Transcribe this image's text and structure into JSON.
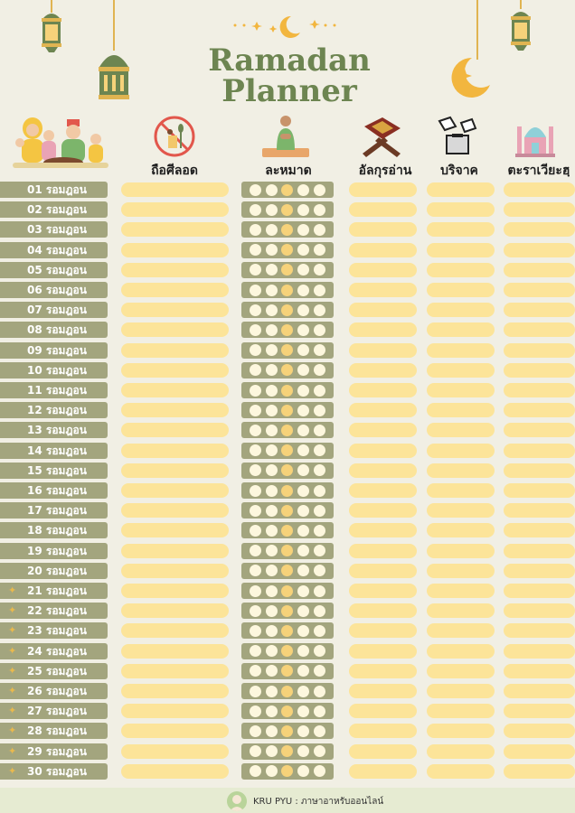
{
  "title": {
    "line1": "Ramadan",
    "line2": "Planner"
  },
  "columns": [
    {
      "key": "fasting",
      "label": "ถือศีลอด",
      "icon": "no-eating-icon"
    },
    {
      "key": "prayer",
      "label": "ละหมาด",
      "icon": "praying-man-icon"
    },
    {
      "key": "quran",
      "label": "อัลกุรอ่าน",
      "icon": "quran-stand-icon"
    },
    {
      "key": "charity",
      "label": "บริจาค",
      "icon": "donation-icon"
    },
    {
      "key": "tarawih",
      "label": "ตะราเวียะฮฺ",
      "icon": "mosque-icon"
    }
  ],
  "days": [
    "01 รอมฎอน",
    "02 รอมฎอน",
    "03 รอมฎอน",
    "04 รอมฎอน",
    "05 รอมฎอน",
    "06 รอมฎอน",
    "07 รอมฎอน",
    "08 รอมฎอน",
    "09 รอมฎอน",
    "10 รอมฎอน",
    "11 รอมฎอน",
    "12 รอมฎอน",
    "13 รอมฎอน",
    "14 รอมฎอน",
    "15 รอมฎอน",
    "16 รอมฎอน",
    "17 รอมฎอน",
    "18 รอมฎอน",
    "19 รอมฎอน",
    "20 รอมฎอน",
    "21 รอมฎอน",
    "22 รอมฎอน",
    "23 รอมฎอน",
    "24 รอมฎอน",
    "25 รอมฎอน",
    "26 รอมฎอน",
    "27 รอมฎอน",
    "28 รอมฎอน",
    "29 รอมฎอน",
    "30 รอมฎอน"
  ],
  "starred_from_day": 21,
  "prayers_per_day": 5,
  "footer": {
    "text": "KRU PYU : ภาษาอาหรับออนไลน์"
  },
  "colors": {
    "background": "#f1efe4",
    "title": "#6d8551",
    "day_bar": "#a3a57e",
    "entry_bar": "#fce499",
    "accent": "#e9b94e"
  }
}
